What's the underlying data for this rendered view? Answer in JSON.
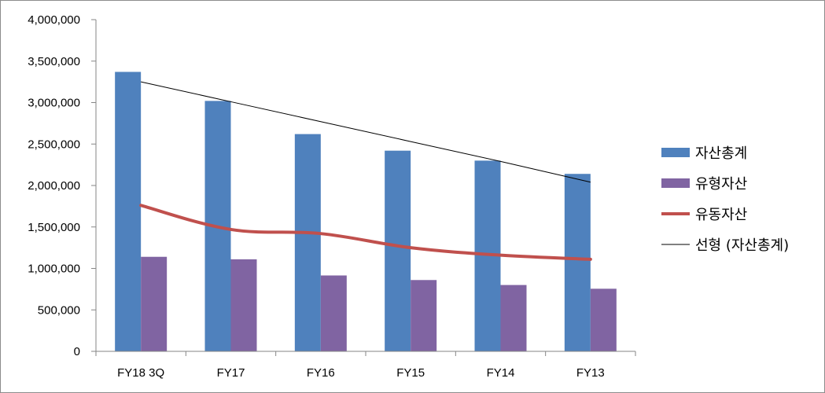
{
  "chart_data": {
    "type": "bar",
    "title": "",
    "xlabel": "",
    "ylabel": "",
    "ylim": [
      0,
      4000000
    ],
    "yticks": [
      0,
      500000,
      1000000,
      1500000,
      2000000,
      2500000,
      3000000,
      3500000,
      4000000
    ],
    "ytick_labels": [
      "0",
      "500,000",
      "1,000,000",
      "1,500,000",
      "2,000,000",
      "2,500,000",
      "3,000,000",
      "3,500,000",
      "4,000,000"
    ],
    "grid": false,
    "legend_position": "right",
    "categories": [
      "FY18 3Q",
      "FY17",
      "FY16",
      "FY15",
      "FY14",
      "FY13"
    ],
    "series": [
      {
        "name": "자산총계",
        "kind": "bar",
        "color": "#4f81bd",
        "values": [
          3370000,
          3020000,
          2620000,
          2420000,
          2300000,
          2140000
        ]
      },
      {
        "name": "유형자산",
        "kind": "bar",
        "color": "#8064a2",
        "values": [
          1140000,
          1110000,
          915000,
          860000,
          800000,
          755000
        ]
      },
      {
        "name": "유동자산",
        "kind": "line",
        "color": "#c0504d",
        "values": [
          1760000,
          1470000,
          1420000,
          1250000,
          1160000,
          1110000
        ]
      },
      {
        "name": "선형 (자산총계)",
        "kind": "trendline",
        "color": "#000000",
        "values": [
          3250000,
          3010000,
          2770000,
          2530000,
          2290000,
          2040000
        ]
      }
    ]
  }
}
